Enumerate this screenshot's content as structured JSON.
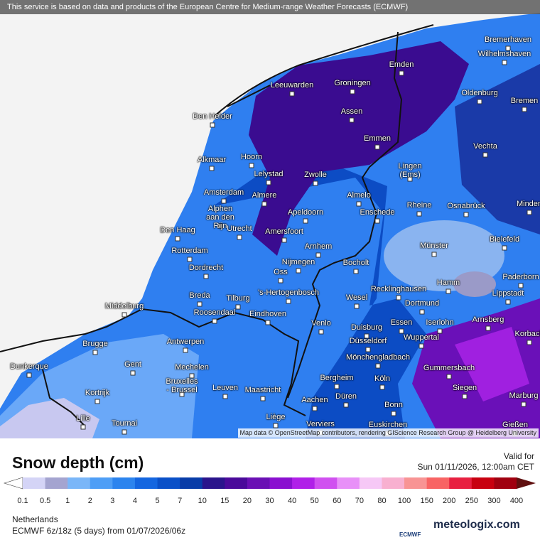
{
  "header": {
    "attribution": "This service is based on data and products of the European Centre for Medium-range Weather Forecasts (ECMWF)"
  },
  "map": {
    "cities": [
      "Bremerhaven",
      "Wilhelmshaven",
      "Emden",
      "Leeuwarden",
      "Groningen",
      "Oldenburg",
      "Bremen",
      "Assen",
      "Den Helder",
      "Emmen",
      "Vechta",
      "Alkmaar",
      "Hoorn",
      "Lingen\n(Ems)",
      "Lelystad",
      "Zwolle",
      "Amsterdam",
      "Almere",
      "Almelo",
      "Rheine",
      "Osnabrück",
      "Minden",
      "Alphen\naan den\nRijn",
      "Apeldoorn",
      "Enschede",
      "Utrecht",
      "Amersfoort",
      "Den Haag",
      "Bielefeld",
      "Münster",
      "Arnhem",
      "Rotterdam",
      "Nijmegen",
      "Bocholt",
      "Dordrecht",
      "Oss",
      "Hamm",
      "Paderborn",
      "Recklinghausen",
      "Lippstadt",
      "Breda",
      "Tilburg",
      "'s-Hertogenbosch",
      "Wesel",
      "Dortmund",
      "Middelburg",
      "Roosendaal",
      "Eindhoven",
      "Essen",
      "Iserlohn",
      "Arnsberg",
      "Venlo",
      "Duisburg",
      "Korbach",
      "Wuppertal",
      "Brugge",
      "Antwerpen",
      "Düsseldorf",
      "Mönchengladbach",
      "Gent",
      "Gummersbach",
      "Mechelen",
      "Dunkerque",
      "Bruxelles\n- Brussel",
      "Bergheim",
      "Köln",
      "Leuven",
      "Maastricht",
      "Siegen",
      "Kortrijk",
      "Düren",
      "Marburg",
      "Aachen",
      "Bonn",
      "Lille",
      "Liège",
      "Tournai",
      "Euskirchen",
      "Verviers",
      "Gießen"
    ],
    "credit": "Map data © OpenStreetMap contributors, rendering GIScience Research Group @ Heidelberg University"
  },
  "legend": {
    "title": "Snow depth (cm)",
    "valid_label": "Valid for",
    "valid_time": "Sun 01/11/2026, 12:00am CET",
    "ticks": [
      0.1,
      0.5,
      1,
      2,
      3,
      4,
      5,
      7,
      10,
      15,
      20,
      30,
      40,
      50,
      60,
      70,
      80,
      100,
      150,
      200,
      250,
      300,
      400
    ]
  },
  "footer": {
    "region": "Netherlands",
    "model": "ECMWF 6z/18z (5 days) from 01/07/2026/06z",
    "ecmwf_logo": "ECMWF",
    "brand": "meteologix.com"
  }
}
